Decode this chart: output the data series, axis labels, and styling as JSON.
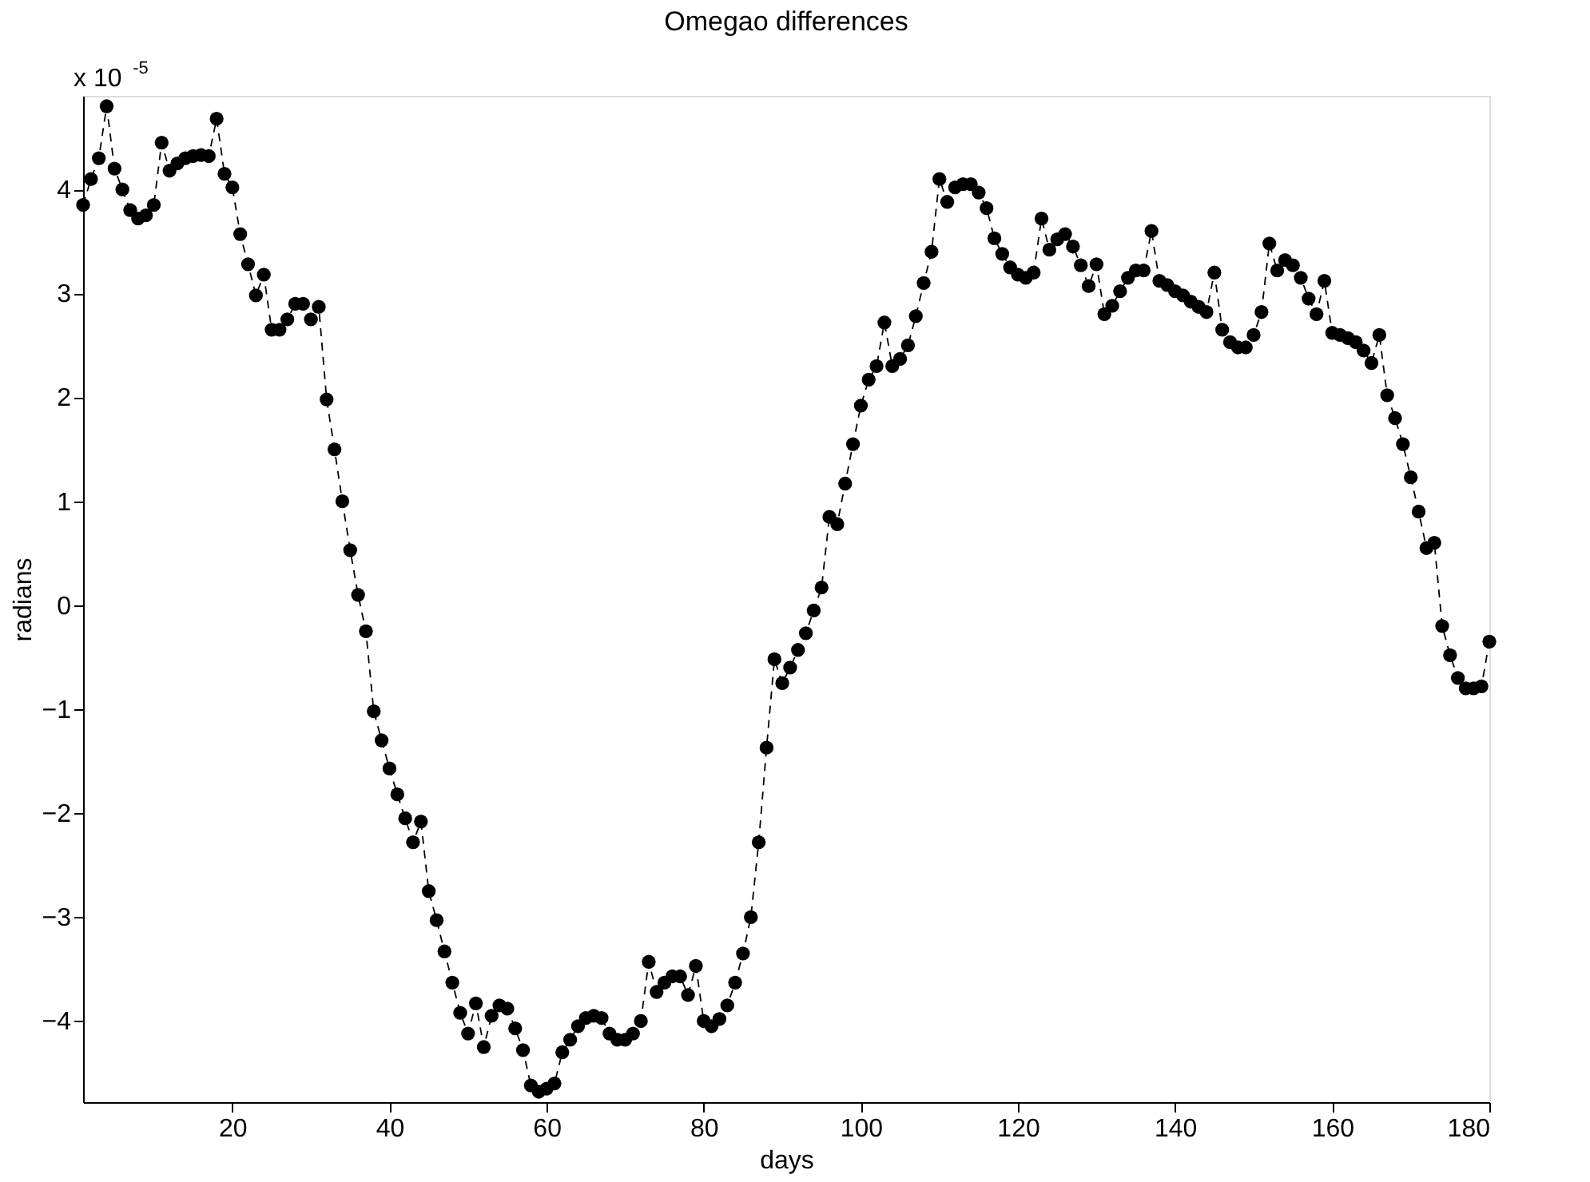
{
  "chart_data": {
    "type": "line",
    "title": "Omegao differences",
    "xlabel": "days",
    "ylabel": "radians",
    "annotations": [
      "x 10$^{-5}$"
    ],
    "xlim": [
      1,
      180
    ],
    "xticks": [
      20,
      40,
      60,
      80,
      100,
      120,
      140,
      160,
      180
    ],
    "ylim": [
      -4.78,
      4.9
    ],
    "yticks": [
      -4,
      -3,
      -2,
      -1,
      0,
      1,
      2,
      3,
      4
    ],
    "grid": false,
    "marker": "circle",
    "line_style": "dashed",
    "series": [
      {
        "color": "#000000",
        "x": [
          1,
          2,
          3,
          4,
          5,
          6,
          7,
          8,
          9,
          10,
          11,
          12,
          13,
          14,
          15,
          16,
          17,
          18,
          19,
          20,
          21,
          22,
          23,
          24,
          25,
          26,
          27,
          28,
          29,
          30,
          31,
          32,
          33,
          34,
          35,
          36,
          37,
          38,
          39,
          40,
          41,
          42,
          43,
          44,
          45,
          46,
          47,
          48,
          49,
          50,
          51,
          52,
          53,
          54,
          55,
          56,
          57,
          58,
          59,
          60,
          61,
          62,
          63,
          64,
          65,
          66,
          67,
          68,
          69,
          70,
          71,
          72,
          73,
          74,
          75,
          76,
          77,
          78,
          79,
          80,
          81,
          82,
          83,
          84,
          85,
          86,
          87,
          88,
          89,
          90,
          91,
          92,
          93,
          94,
          95,
          96,
          97,
          98,
          99,
          100,
          101,
          102,
          103,
          104,
          105,
          106,
          107,
          108,
          109,
          110,
          111,
          112,
          113,
          114,
          115,
          116,
          117,
          118,
          119,
          120,
          121,
          122,
          123,
          124,
          125,
          126,
          127,
          128,
          129,
          130,
          131,
          132,
          133,
          134,
          135,
          136,
          137,
          138,
          139,
          140,
          141,
          142,
          143,
          144,
          145,
          146,
          147,
          148,
          149,
          150,
          151,
          152,
          153,
          154,
          155,
          156,
          157,
          158,
          159,
          160,
          161,
          162,
          163,
          164,
          165,
          166,
          167,
          168,
          169,
          170,
          171,
          172,
          173,
          174,
          175,
          176,
          177,
          178,
          179,
          180
        ],
        "values": [
          3.85,
          4.1,
          4.3,
          4.8,
          4.2,
          4.0,
          3.8,
          3.72,
          3.75,
          3.85,
          4.45,
          4.18,
          4.25,
          4.3,
          4.32,
          4.33,
          4.32,
          4.68,
          4.15,
          4.02,
          3.57,
          3.28,
          2.98,
          3.18,
          2.65,
          2.65,
          2.75,
          2.9,
          2.9,
          2.75,
          2.87,
          1.98,
          1.5,
          1.0,
          0.53,
          0.1,
          -0.25,
          -1.02,
          -1.3,
          -1.57,
          -1.82,
          -2.05,
          -2.28,
          -2.08,
          -2.75,
          -3.03,
          -3.33,
          -3.63,
          -3.92,
          -4.12,
          -3.83,
          -4.25,
          -3.95,
          -3.85,
          -3.88,
          -4.07,
          -4.28,
          -4.62,
          -4.68,
          -4.65,
          -4.6,
          -4.3,
          -4.18,
          -4.05,
          -3.97,
          -3.95,
          -3.97,
          -4.12,
          -4.18,
          -4.18,
          -4.12,
          -4.0,
          -3.43,
          -3.72,
          -3.63,
          -3.57,
          -3.57,
          -3.75,
          -3.47,
          -4.0,
          -4.05,
          -3.98,
          -3.85,
          -3.63,
          -3.35,
          -3.0,
          -2.28,
          -1.37,
          -0.52,
          -0.75,
          -0.6,
          -0.43,
          -0.27,
          -0.05,
          0.17,
          0.85,
          0.78,
          1.17,
          1.55,
          1.92,
          2.17,
          2.3,
          2.72,
          2.3,
          2.37,
          2.5,
          2.78,
          3.1,
          3.4,
          4.1,
          3.88,
          4.02,
          4.05,
          4.05,
          3.97,
          3.82,
          3.53,
          3.38,
          3.25,
          3.18,
          3.15,
          3.2,
          3.72,
          3.42,
          3.52,
          3.57,
          3.45,
          3.27,
          3.07,
          3.28,
          2.8,
          2.88,
          3.02,
          3.15,
          3.22,
          3.22,
          3.6,
          3.12,
          3.08,
          3.02,
          2.98,
          2.92,
          2.87,
          2.82,
          3.2,
          2.65,
          2.53,
          2.48,
          2.48,
          2.6,
          2.82,
          3.48,
          3.22,
          3.32,
          3.27,
          3.15,
          2.95,
          2.8,
          3.12,
          2.62,
          2.6,
          2.57,
          2.53,
          2.45,
          2.33,
          2.6,
          2.02,
          1.8,
          1.55,
          1.23,
          0.9,
          0.55,
          0.6,
          -0.2,
          -0.48,
          -0.7,
          -0.8,
          -0.8,
          -0.78,
          -0.35
        ]
      }
    ]
  }
}
